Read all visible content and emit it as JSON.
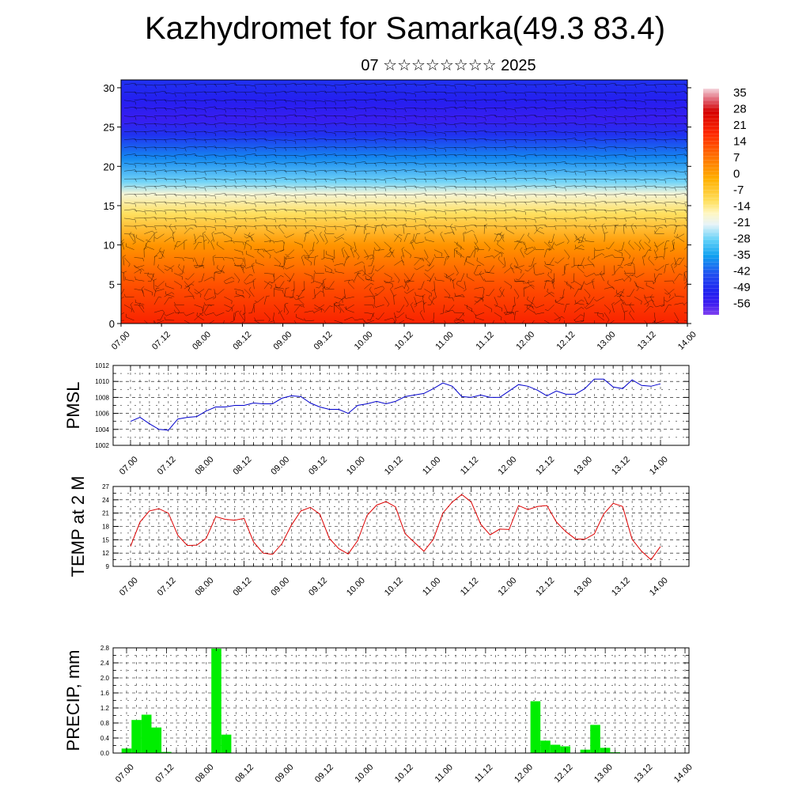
{
  "header": {
    "title": "Kazhydromet for Samarka(49.3 83.4)",
    "subtitle": "07 ☆☆☆☆☆☆☆☆ 2025"
  },
  "colors": {
    "pmsl_line": "#0000cc",
    "temp_line": "#dd0000",
    "precip_bar": "#00ee00",
    "barb": "#000000"
  },
  "icons": [
    "wind-barb-icon"
  ],
  "time_labels": [
    "07.00",
    "07.12",
    "08.00",
    "08.12",
    "09.00",
    "09.12",
    "10.00",
    "10.12",
    "11.00",
    "11.12",
    "12.00",
    "12.12",
    "13.00",
    "13.12",
    "14.00"
  ],
  "chart_data": [
    {
      "type": "heatmap",
      "name": "upper-air-temperature-and-wind",
      "x": [
        "07.00",
        "07.12",
        "08.00",
        "08.12",
        "09.00",
        "09.12",
        "10.00",
        "10.12",
        "11.00",
        "11.12",
        "12.00",
        "12.12",
        "13.00",
        "13.12",
        "14.00"
      ],
      "ylim": [
        0,
        31
      ],
      "yticks": [
        0,
        5,
        10,
        15,
        20,
        25,
        30
      ],
      "colorbar": {
        "labels": [
          "35",
          "28",
          "21",
          "14",
          "7",
          "0",
          "-7",
          "-14",
          "-21",
          "-28",
          "-35",
          "-42",
          "-49",
          "-56"
        ],
        "range": [
          -63,
          42
        ]
      },
      "profile": [
        {
          "y": 0,
          "value": 22
        },
        {
          "y": 5,
          "value": 17
        },
        {
          "y": 10,
          "value": 10
        },
        {
          "y": 14,
          "value": 0
        },
        {
          "y": 16.5,
          "value": -10
        },
        {
          "y": 18,
          "value": -20
        },
        {
          "y": 21,
          "value": -32
        },
        {
          "y": 24,
          "value": -45
        },
        {
          "y": 26,
          "value": -55
        },
        {
          "y": 28.5,
          "value": -50
        },
        {
          "y": 31,
          "value": -45
        }
      ],
      "overlay": "wind barbs"
    },
    {
      "type": "line",
      "name": "PMSL",
      "ylabel": "PMSL",
      "ylim": [
        1002,
        1012
      ],
      "yticks": [
        1002,
        1004,
        1006,
        1008,
        1010,
        1012
      ],
      "x_step_hours": 3,
      "values": [
        1005.0,
        1005.5,
        1004.7,
        1004.0,
        1003.9,
        1005.3,
        1005.5,
        1005.6,
        1006.3,
        1006.8,
        1006.8,
        1007.0,
        1007.0,
        1007.3,
        1007.2,
        1007.2,
        1007.9,
        1008.2,
        1008.1,
        1007.3,
        1006.8,
        1006.5,
        1006.5,
        1006.0,
        1007.0,
        1007.2,
        1007.5,
        1007.2,
        1007.5,
        1008.1,
        1008.3,
        1008.5,
        1009.1,
        1009.8,
        1009.4,
        1008.1,
        1008.0,
        1008.3,
        1008.0,
        1008.0,
        1008.8,
        1009.6,
        1009.4,
        1008.9,
        1008.2,
        1008.8,
        1008.4,
        1008.4,
        1009.1,
        1010.3,
        1010.3,
        1009.3,
        1009.1,
        1010.2,
        1009.5,
        1009.4,
        1009.7
      ]
    },
    {
      "type": "line",
      "name": "TEMP at 2 M",
      "ylabel": "TEMP at 2 M",
      "ylim": [
        9,
        27
      ],
      "yticks": [
        9,
        12,
        15,
        18,
        21,
        24,
        27
      ],
      "x_step_hours": 3,
      "values": [
        13.5,
        19.0,
        21.5,
        22.0,
        21.0,
        16.0,
        13.7,
        13.8,
        15.3,
        20.2,
        19.6,
        19.4,
        19.8,
        14.5,
        12.0,
        11.7,
        14.1,
        18.3,
        21.5,
        22.3,
        20.8,
        15.3,
        13.0,
        11.8,
        14.8,
        20.5,
        22.8,
        23.6,
        22.4,
        16.4,
        14.4,
        12.4,
        15.1,
        21.0,
        23.5,
        25.2,
        23.5,
        18.5,
        16.1,
        17.4,
        17.3,
        22.7,
        21.8,
        22.5,
        22.7,
        19.0,
        16.8,
        15.2,
        15.1,
        16.3,
        20.8,
        23.2,
        22.5,
        15.1,
        12.4,
        10.5,
        13.5
      ]
    },
    {
      "type": "bar",
      "name": "PRECIP, mm",
      "ylabel": "PRECIP, mm",
      "ylim": [
        0,
        2.8
      ],
      "yticks": [
        "0.0",
        "0.4",
        "0.8",
        "1.2",
        "1.6",
        "2.0",
        "2.4",
        "2.8"
      ],
      "x_step_hours": 3,
      "values": [
        0.12,
        0.88,
        1.02,
        0.68,
        0.03,
        0,
        0,
        0,
        0,
        2.78,
        0.49,
        0,
        0,
        0,
        0,
        0,
        0,
        0,
        0,
        0,
        0,
        0,
        0,
        0,
        0,
        0,
        0,
        0,
        0,
        0,
        0,
        0,
        0,
        0,
        0,
        0,
        0,
        0,
        0,
        0,
        0,
        1.38,
        0.33,
        0.22,
        0.18,
        0,
        0.09,
        0.75,
        0.14,
        0.02,
        0,
        0,
        0,
        0,
        0,
        0,
        0
      ]
    }
  ]
}
